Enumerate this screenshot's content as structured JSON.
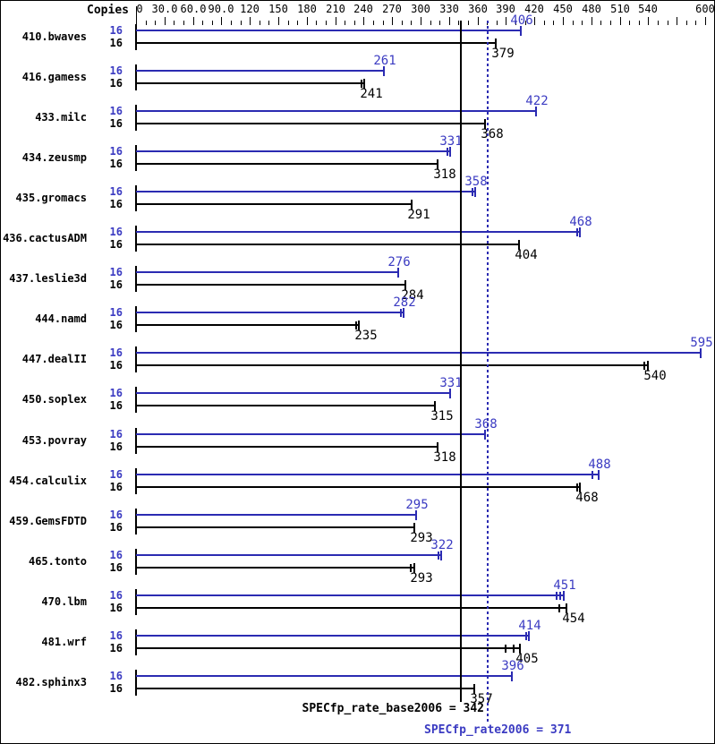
{
  "chart_data": {
    "type": "bar",
    "orientation": "horizontal",
    "copies_header": "Copies",
    "colors": {
      "peak_bar": "#2b2bb2",
      "peak_text": "#3b3bc2",
      "base_bar": "#000000",
      "base_text": "#000000"
    },
    "x_axis": {
      "min": 0,
      "max": 600,
      "minor_step": 10,
      "major_step": 30,
      "tick_labels": [
        {
          "v": 0,
          "label": "0"
        },
        {
          "v": 30,
          "label": "30.0"
        },
        {
          "v": 60,
          "label": "60.0"
        },
        {
          "v": 90,
          "label": "90.0"
        },
        {
          "v": 120,
          "label": "120"
        },
        {
          "v": 150,
          "label": "150"
        },
        {
          "v": 180,
          "label": "180"
        },
        {
          "v": 210,
          "label": "210"
        },
        {
          "v": 240,
          "label": "240"
        },
        {
          "v": 270,
          "label": "270"
        },
        {
          "v": 300,
          "label": "300"
        },
        {
          "v": 330,
          "label": "330"
        },
        {
          "v": 360,
          "label": "360"
        },
        {
          "v": 390,
          "label": "390"
        },
        {
          "v": 420,
          "label": "420"
        },
        {
          "v": 450,
          "label": "450"
        },
        {
          "v": 480,
          "label": "480"
        },
        {
          "v": 510,
          "label": "510"
        },
        {
          "v": 540,
          "label": "540"
        },
        {
          "v": 600,
          "label": "600"
        }
      ]
    },
    "benchmarks": [
      {
        "name": "410.bwaves",
        "copies_peak": "16",
        "copies_base": "16",
        "peak": 406,
        "base": 379,
        "peak_marks": [],
        "base_marks": []
      },
      {
        "name": "416.gamess",
        "copies_peak": "16",
        "copies_base": "16",
        "peak": 261,
        "base": 241,
        "peak_marks": [],
        "base_marks": [
          -4
        ]
      },
      {
        "name": "433.milc",
        "copies_peak": "16",
        "copies_base": "16",
        "peak": 422,
        "base": 368,
        "peak_marks": [],
        "base_marks": []
      },
      {
        "name": "434.zeusmp",
        "copies_peak": "16",
        "copies_base": "16",
        "peak": 331,
        "base": 318,
        "peak_marks": [
          -4
        ],
        "base_marks": []
      },
      {
        "name": "435.gromacs",
        "copies_peak": "16",
        "copies_base": "16",
        "peak": 358,
        "base": 291,
        "peak_marks": [
          -4
        ],
        "base_marks": []
      },
      {
        "name": "436.cactusADM",
        "copies_peak": "16",
        "copies_base": "16",
        "peak": 468,
        "base": 404,
        "peak_marks": [
          -4
        ],
        "base_marks": []
      },
      {
        "name": "437.leslie3d",
        "copies_peak": "16",
        "copies_base": "16",
        "peak": 276,
        "base": 284,
        "peak_marks": [],
        "base_marks": []
      },
      {
        "name": "444.namd",
        "copies_peak": "16",
        "copies_base": "16",
        "peak": 282,
        "base": 235,
        "peak_marks": [
          -4
        ],
        "base_marks": [
          -4
        ]
      },
      {
        "name": "447.dealII",
        "copies_peak": "16",
        "copies_base": "16",
        "peak": 595,
        "base": 540,
        "peak_marks": [],
        "base_marks": [
          -5
        ]
      },
      {
        "name": "450.soplex",
        "copies_peak": "16",
        "copies_base": "16",
        "peak": 331,
        "base": 315,
        "peak_marks": [],
        "base_marks": []
      },
      {
        "name": "453.povray",
        "copies_peak": "16",
        "copies_base": "16",
        "peak": 368,
        "base": 318,
        "peak_marks": [],
        "base_marks": []
      },
      {
        "name": "454.calculix",
        "copies_peak": "16",
        "copies_base": "16",
        "peak": 488,
        "base": 468,
        "peak_marks": [
          -8
        ],
        "base_marks": [
          -4
        ]
      },
      {
        "name": "459.GemsFDTD",
        "copies_peak": "16",
        "copies_base": "16",
        "peak": 295,
        "base": 293,
        "peak_marks": [],
        "base_marks": []
      },
      {
        "name": "465.tonto",
        "copies_peak": "16",
        "copies_base": "16",
        "peak": 322,
        "base": 293,
        "peak_marks": [
          -4
        ],
        "base_marks": [
          -4
        ]
      },
      {
        "name": "470.lbm",
        "copies_peak": "16",
        "copies_base": "16",
        "peak": 451,
        "base": 454,
        "peak_marks": [
          -5,
          -9
        ],
        "base_marks": [
          -9
        ]
      },
      {
        "name": "481.wrf",
        "copies_peak": "16",
        "copies_base": "16",
        "peak": 414,
        "base": 405,
        "peak_marks": [
          -4
        ],
        "base_marks": [
          -8,
          -16
        ]
      },
      {
        "name": "482.sphinx3",
        "copies_peak": "16",
        "copies_base": "16",
        "peak": 396,
        "base": 357,
        "peak_marks": [],
        "base_marks": []
      }
    ],
    "base_line": {
      "label": "SPECfp_rate_base2006 = 342",
      "value": 342
    },
    "peak_line": {
      "label": "SPECfp_rate2006 = 371",
      "value": 371
    }
  }
}
